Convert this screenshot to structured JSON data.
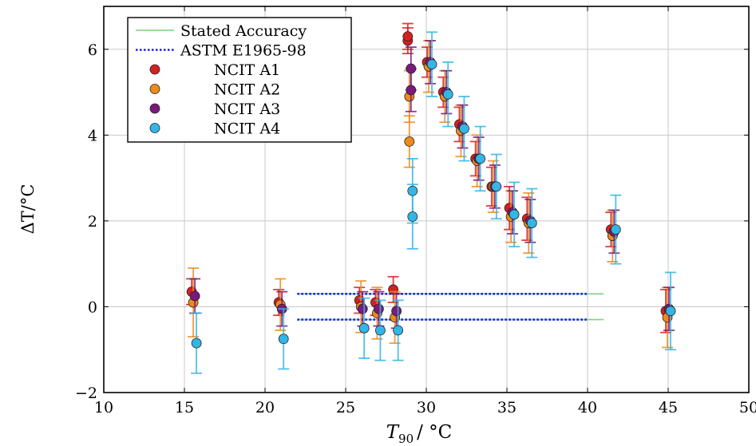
{
  "chart_data": {
    "type": "scatter",
    "title": "",
    "xlabel": "T",
    "xlabel_sub": "90",
    "xlabel_unit": "/ °C",
    "ylabel": "ΔT/°C",
    "xlim": [
      10,
      50
    ],
    "ylim": [
      -2,
      7
    ],
    "x_ticks": [
      10,
      15,
      20,
      25,
      30,
      35,
      40,
      45,
      50
    ],
    "y_ticks": [
      -2,
      0,
      2,
      4,
      6
    ],
    "y_tick_labels": [
      "−2",
      "0",
      "2",
      "4",
      "6"
    ],
    "grid": true,
    "legend_position": "top-left",
    "lines": [
      {
        "name": "Stated Accuracy",
        "color": "#7fcf7f",
        "style": "solid",
        "segments": [
          {
            "x": [
              22,
              41
            ],
            "y": [
              0.3,
              0.3
            ]
          },
          {
            "x": [
              22,
              41
            ],
            "y": [
              -0.3,
              -0.3
            ]
          }
        ]
      },
      {
        "name": "ASTM E1965-98",
        "color": "#1a1aff",
        "style": "dotted",
        "segments": [
          {
            "x": [
              22,
              40
            ],
            "y": [
              0.3,
              0.3
            ]
          },
          {
            "x": [
              22,
              40
            ],
            "y": [
              -0.3,
              -0.3
            ]
          }
        ]
      }
    ],
    "series": [
      {
        "name": "NCIT A1",
        "color": "#d42020",
        "x": [
          15.6,
          21.0,
          26.0,
          27.0,
          28.1,
          29.0,
          29.0,
          30.2,
          31.2,
          32.2,
          33.2,
          34.2,
          35.3,
          36.4,
          41.6,
          45.0
        ],
        "y": [
          0.35,
          0.1,
          0.15,
          0.1,
          0.4,
          6.2,
          6.3,
          5.7,
          5.0,
          4.25,
          3.45,
          2.8,
          2.3,
          2.05,
          1.8,
          -0.1
        ],
        "err": [
          0.3,
          0.3,
          0.3,
          0.3,
          0.3,
          0.3,
          0.3,
          0.35,
          0.35,
          0.4,
          0.4,
          0.45,
          0.5,
          0.5,
          0.4,
          0.5
        ]
      },
      {
        "name": "NCIT A2",
        "color": "#ee8a1a",
        "x": [
          15.6,
          21.0,
          26.0,
          27.0,
          28.1,
          29.0,
          29.0,
          30.2,
          31.2,
          32.2,
          33.2,
          34.2,
          35.3,
          36.4,
          41.6,
          45.0
        ],
        "y": [
          0.1,
          0.05,
          0.0,
          -0.15,
          -0.25,
          4.9,
          3.85,
          5.6,
          4.9,
          4.1,
          3.4,
          2.8,
          2.1,
          1.95,
          1.65,
          -0.25
        ],
        "err": [
          0.8,
          0.6,
          0.6,
          0.6,
          0.6,
          0.6,
          0.6,
          0.6,
          0.6,
          0.6,
          0.6,
          0.6,
          0.6,
          0.7,
          0.6,
          0.7
        ]
      },
      {
        "name": "NCIT A3",
        "color": "#7a1a7a",
        "x": [
          15.6,
          21.0,
          26.0,
          27.0,
          28.1,
          29.0,
          29.0,
          30.2,
          31.2,
          32.2,
          33.2,
          34.2,
          35.3,
          36.4,
          41.6,
          45.0
        ],
        "y": [
          0.25,
          -0.05,
          -0.05,
          -0.05,
          -0.1,
          5.55,
          5.05,
          5.7,
          5.0,
          4.2,
          3.45,
          2.8,
          2.2,
          2.0,
          1.75,
          -0.05
        ],
        "err": [
          0.4,
          0.4,
          0.4,
          0.4,
          0.4,
          0.5,
          0.5,
          0.5,
          0.5,
          0.5,
          0.5,
          0.5,
          0.5,
          0.5,
          0.5,
          0.5
        ]
      },
      {
        "name": "NCIT A4",
        "color": "#33b6e6",
        "x": [
          15.6,
          21.0,
          26.0,
          27.0,
          28.1,
          29.0,
          29.0,
          30.2,
          31.2,
          32.2,
          33.2,
          34.2,
          35.3,
          36.4,
          41.6,
          45.0
        ],
        "y": [
          -0.85,
          -0.75,
          -0.5,
          -0.55,
          -0.55,
          2.7,
          2.1,
          5.65,
          4.95,
          4.15,
          3.45,
          2.8,
          2.15,
          1.95,
          1.8,
          -0.1
        ],
        "err": [
          0.7,
          0.7,
          0.7,
          0.7,
          0.7,
          0.75,
          0.75,
          0.75,
          0.75,
          0.75,
          0.75,
          0.75,
          0.75,
          0.8,
          0.8,
          0.9
        ]
      }
    ],
    "legend_entries": [
      "Stated Accuracy",
      "ASTM E1965-98",
      "NCIT A1",
      "NCIT A2",
      "NCIT A3",
      "NCIT A4"
    ]
  }
}
